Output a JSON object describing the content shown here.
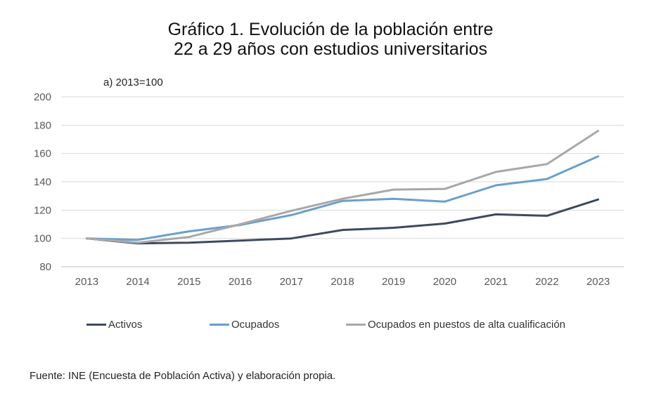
{
  "title_line1": "Gráfico 1. Evolución de la población entre",
  "title_line2": "22 a 29 años con estudios universitarios",
  "subtitle": "a) 2013=100",
  "source": "Fuente: INE (Encuesta de Población Activa) y elaboración propia.",
  "chart_data": {
    "type": "line",
    "title": "Gráfico 1. Evolución de la población entre 22 a 29 años con estudios universitarios",
    "subtitle": "a) 2013=100",
    "x": [
      "2013",
      "2014",
      "2015",
      "2016",
      "2017",
      "2018",
      "2019",
      "2020",
      "2021",
      "2022",
      "2023"
    ],
    "ylim": [
      80,
      200
    ],
    "yticks": [
      80,
      100,
      120,
      140,
      160,
      180,
      200
    ],
    "grid": true,
    "legend": "bottom",
    "series": [
      {
        "name": "Activos",
        "color": "#3d4a5f",
        "values": [
          100,
          96.5,
          97,
          98.5,
          100,
          106,
          107.5,
          110.5,
          117,
          116,
          127.5
        ]
      },
      {
        "name": "Ocupados",
        "color": "#6a9fcb",
        "values": [
          100,
          99,
          105,
          109.5,
          116.5,
          126.5,
          128,
          126,
          137.5,
          142,
          158
        ]
      },
      {
        "name": "Ocupados en puestos de alta cualificación",
        "color": "#a8a8a8",
        "values": [
          100,
          97,
          101,
          110,
          119.5,
          128,
          134.5,
          135,
          147,
          152.5,
          176
        ]
      }
    ]
  }
}
